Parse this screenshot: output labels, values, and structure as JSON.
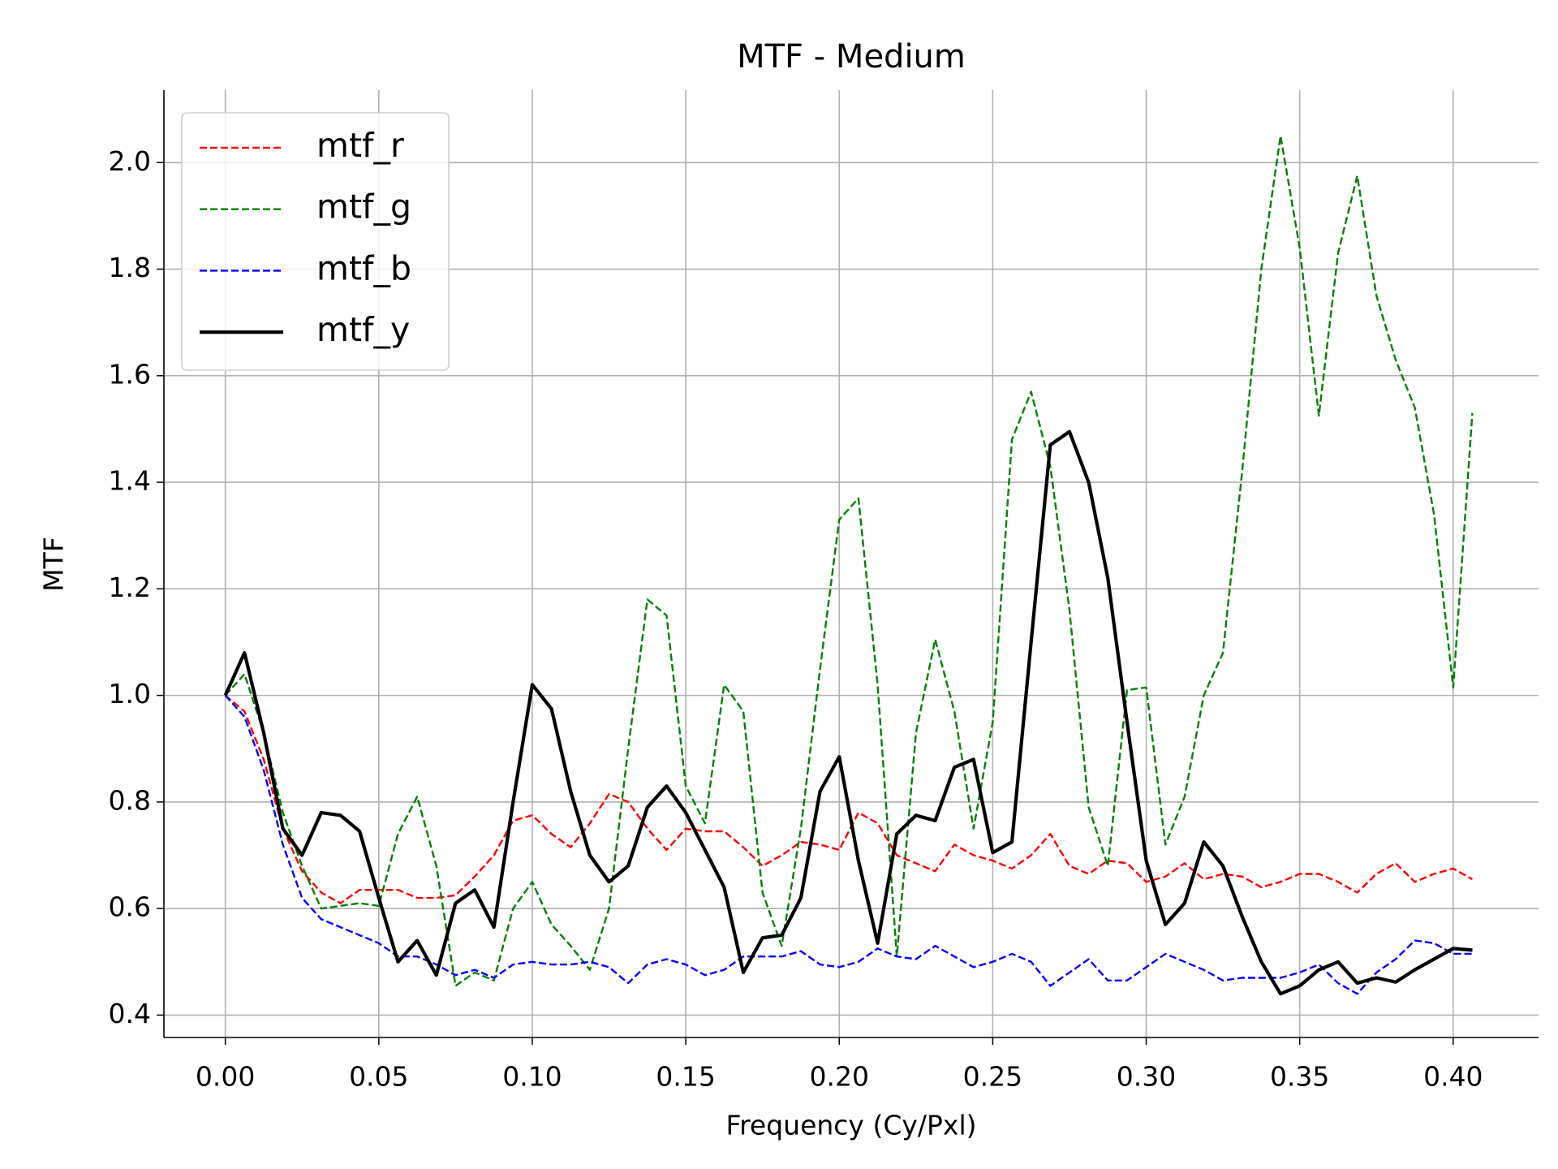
{
  "chart_data": {
    "type": "line",
    "title": "MTF - Medium",
    "xlabel": "Frequency (Cy/Pxl)",
    "ylabel": "MTF",
    "x": [
      0,
      0.00625,
      0.0125,
      0.01875,
      0.025,
      0.03125,
      0.0375,
      0.04375,
      0.05,
      0.05625,
      0.0625,
      0.06875,
      0.075,
      0.08125,
      0.0875,
      0.09375,
      0.1,
      0.10625,
      0.1125,
      0.11875,
      0.125,
      0.13125,
      0.1375,
      0.14375,
      0.15,
      0.15625,
      0.1625,
      0.16875,
      0.175,
      0.18125,
      0.1875,
      0.19375,
      0.2,
      0.20625,
      0.2125,
      0.21875,
      0.225,
      0.23125,
      0.2375,
      0.24375,
      0.25,
      0.25625,
      0.2625,
      0.26875,
      0.275,
      0.28125,
      0.2875,
      0.29375,
      0.3,
      0.30625,
      0.3125,
      0.31875,
      0.325,
      0.33125,
      0.3375,
      0.34375,
      0.35,
      0.35625,
      0.3625,
      0.36875,
      0.375,
      0.38125,
      0.3875,
      0.39375,
      0.4,
      0.40625
    ],
    "series": [
      {
        "name": "mtf_r",
        "color": "#ff0000",
        "dashed": true,
        "values": [
          1.0,
          0.97,
          0.88,
          0.75,
          0.67,
          0.63,
          0.61,
          0.635,
          0.635,
          0.635,
          0.62,
          0.62,
          0.625,
          0.66,
          0.7,
          0.765,
          0.775,
          0.74,
          0.715,
          0.76,
          0.815,
          0.8,
          0.75,
          0.71,
          0.75,
          0.745,
          0.745,
          0.715,
          0.68,
          0.7,
          0.725,
          0.72,
          0.71,
          0.78,
          0.76,
          0.7,
          0.685,
          0.67,
          0.72,
          0.7,
          0.69,
          0.675,
          0.7,
          0.74,
          0.68,
          0.665,
          0.69,
          0.685,
          0.65,
          0.66,
          0.685,
          0.655,
          0.665,
          0.66,
          0.64,
          0.65,
          0.665,
          0.665,
          0.65,
          0.63,
          0.665,
          0.685,
          0.65,
          0.665,
          0.675,
          0.655
        ]
      },
      {
        "name": "mtf_g",
        "color": "#008000",
        "dashed": true,
        "values": [
          1.0,
          1.04,
          0.93,
          0.78,
          0.68,
          0.6,
          0.605,
          0.61,
          0.605,
          0.74,
          0.81,
          0.68,
          0.455,
          0.48,
          0.465,
          0.6,
          0.65,
          0.57,
          0.53,
          0.485,
          0.6,
          0.9,
          1.18,
          1.15,
          0.83,
          0.76,
          1.02,
          0.97,
          0.63,
          0.53,
          0.75,
          1.05,
          1.33,
          1.37,
          1.02,
          0.51,
          0.93,
          1.105,
          0.97,
          0.75,
          0.95,
          1.48,
          1.57,
          1.43,
          1.16,
          0.79,
          0.68,
          1.01,
          1.015,
          0.72,
          0.81,
          1.0,
          1.08,
          1.42,
          1.8,
          2.05,
          1.84,
          1.525,
          1.83,
          1.975,
          1.75,
          1.63,
          1.54,
          1.34,
          1.015,
          1.53
        ]
      },
      {
        "name": "mtf_b",
        "color": "#0000ff",
        "dashed": true,
        "values": [
          1.0,
          0.96,
          0.86,
          0.72,
          0.62,
          0.58,
          0.565,
          0.55,
          0.535,
          0.51,
          0.51,
          0.495,
          0.475,
          0.485,
          0.47,
          0.495,
          0.5,
          0.495,
          0.495,
          0.5,
          0.49,
          0.46,
          0.495,
          0.505,
          0.495,
          0.475,
          0.485,
          0.51,
          0.51,
          0.51,
          0.52,
          0.495,
          0.49,
          0.5,
          0.525,
          0.51,
          0.505,
          0.53,
          0.51,
          0.49,
          0.5,
          0.515,
          0.5,
          0.455,
          0.48,
          0.505,
          0.465,
          0.465,
          0.49,
          0.515,
          0.5,
          0.485,
          0.465,
          0.47,
          0.47,
          0.47,
          0.48,
          0.495,
          0.46,
          0.44,
          0.48,
          0.505,
          0.54,
          0.535,
          0.515,
          0.515
        ]
      },
      {
        "name": "mtf_y",
        "color": "#000000",
        "dashed": false,
        "values": [
          1.0,
          1.08,
          0.93,
          0.75,
          0.7,
          0.78,
          0.775,
          0.745,
          0.62,
          0.5,
          0.54,
          0.475,
          0.61,
          0.635,
          0.565,
          0.8,
          1.02,
          0.975,
          0.82,
          0.7,
          0.65,
          0.68,
          0.79,
          0.83,
          0.78,
          0.71,
          0.64,
          0.48,
          0.545,
          0.55,
          0.62,
          0.82,
          0.885,
          0.69,
          0.535,
          0.74,
          0.775,
          0.765,
          0.865,
          0.88,
          0.705,
          0.725,
          1.1,
          1.47,
          1.495,
          1.4,
          1.22,
          0.95,
          0.69,
          0.57,
          0.61,
          0.725,
          0.68,
          0.585,
          0.5,
          0.44,
          0.455,
          0.485,
          0.5,
          0.46,
          0.47,
          0.462,
          0.485,
          0.505,
          0.525,
          0.522
        ]
      }
    ],
    "xlim": [
      -0.02,
      0.4278
    ],
    "ylim": [
      0.358,
      2.136
    ],
    "xticks": [
      {
        "value": 0,
        "label": "0.00"
      },
      {
        "value": 0.05,
        "label": "0.05"
      },
      {
        "value": 0.1,
        "label": "0.10"
      },
      {
        "value": 0.15,
        "label": "0.15"
      },
      {
        "value": 0.2,
        "label": "0.20"
      },
      {
        "value": 0.25,
        "label": "0.25"
      },
      {
        "value": 0.3,
        "label": "0.30"
      },
      {
        "value": 0.35,
        "label": "0.35"
      },
      {
        "value": 0.4,
        "label": "0.40"
      }
    ],
    "yticks": [
      0.4,
      0.6,
      0.8,
      {
        "value": 1,
        "label": "1.0"
      },
      1.2,
      1.4,
      1.6,
      1.8,
      {
        "value": 2,
        "label": "2.0"
      }
    ],
    "grid": true,
    "legend": "upper left"
  }
}
